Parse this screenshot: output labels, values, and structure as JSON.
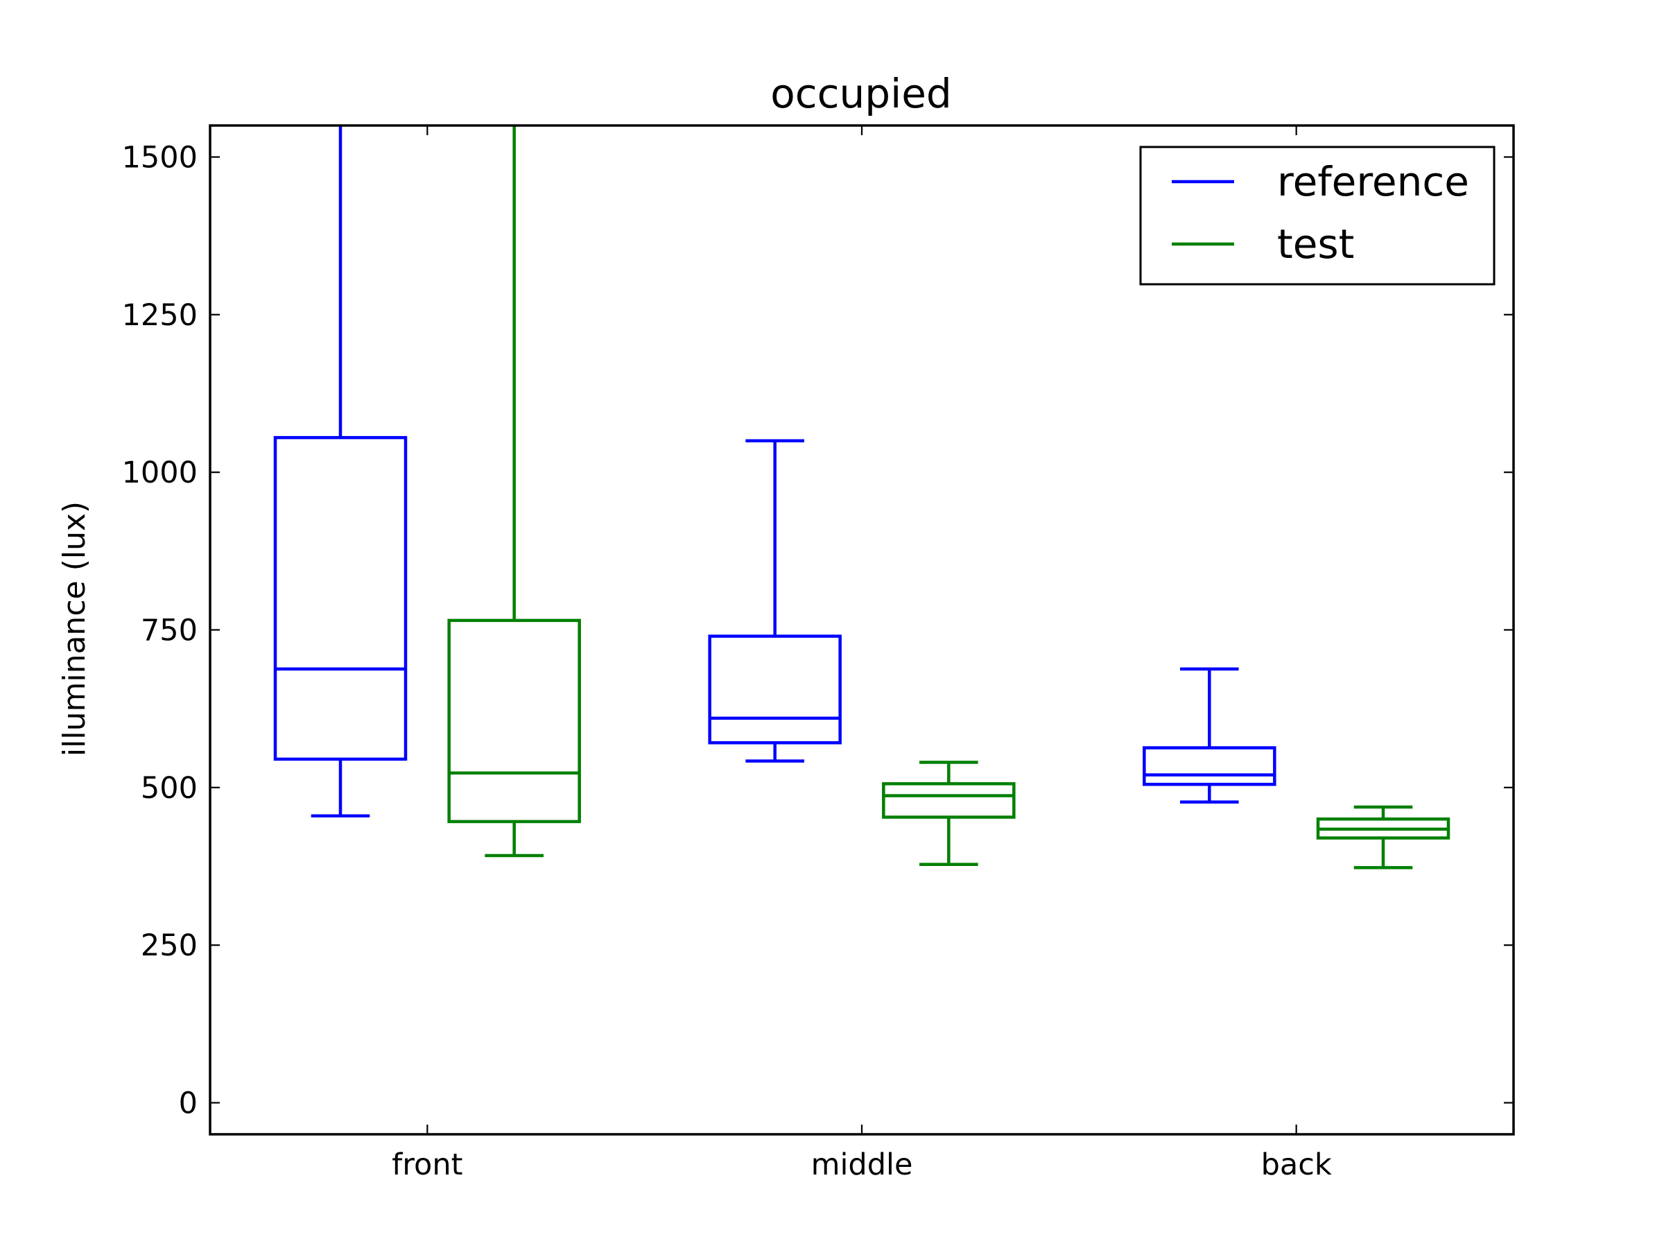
{
  "chart_data": {
    "type": "boxplot",
    "title": "occupied",
    "xlabel": "",
    "ylabel": "illuminance (lux)",
    "categories": [
      "front",
      "middle",
      "back"
    ],
    "ylim": [
      -50,
      1550
    ],
    "yticks": [
      0,
      250,
      500,
      750,
      1000,
      1250,
      1500
    ],
    "ytick_labels": [
      "0",
      "250",
      "500",
      "750",
      "1000",
      "1250",
      "1500"
    ],
    "grid": false,
    "legend": {
      "position": "top-right"
    },
    "series": [
      {
        "name": "reference",
        "color": "#0000ff",
        "boxes": [
          {
            "whislo": 455,
            "q1": 545,
            "med": 688,
            "q3": 1055,
            "whishi": 1550
          },
          {
            "whislo": 542,
            "q1": 571,
            "med": 610,
            "q3": 740,
            "whishi": 1050
          },
          {
            "whislo": 477,
            "q1": 505,
            "med": 520,
            "q3": 563,
            "whishi": 688
          }
        ]
      },
      {
        "name": "test",
        "color": "#008000",
        "boxes": [
          {
            "whislo": 392,
            "q1": 446,
            "med": 523,
            "q3": 765,
            "whishi": 1550
          },
          {
            "whislo": 378,
            "q1": 453,
            "med": 487,
            "q3": 506,
            "whishi": 540
          },
          {
            "whislo": 373,
            "q1": 420,
            "med": 434,
            "q3": 450,
            "whishi": 469
          }
        ]
      }
    ]
  }
}
